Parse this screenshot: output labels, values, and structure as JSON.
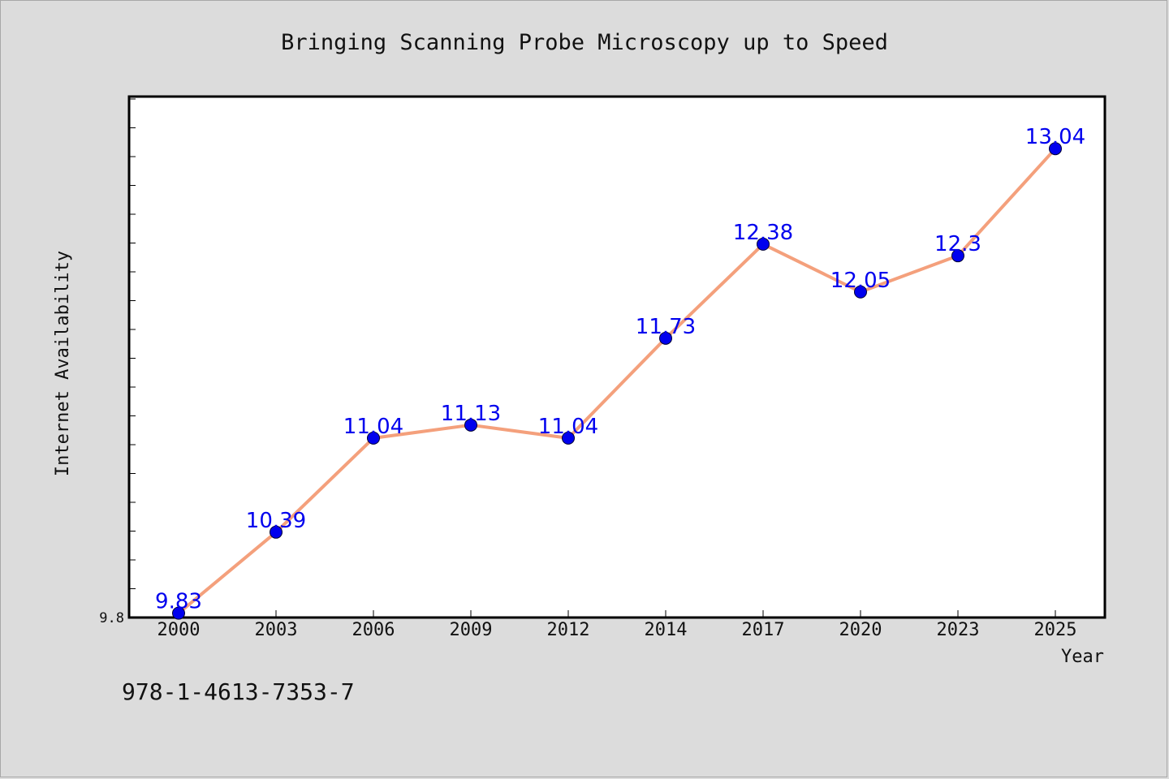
{
  "footnote": "978-1-4613-7353-7",
  "chart_data": {
    "type": "line",
    "title": "Bringing Scanning Probe Microscopy up to Speed",
    "xlabel": "Year",
    "ylabel": "Internet Availability",
    "categories": [
      "2000",
      "2003",
      "2006",
      "2009",
      "2012",
      "2014",
      "2017",
      "2020",
      "2023",
      "2025"
    ],
    "series": [
      {
        "values": [
          9.83,
          10.39,
          11.04,
          11.13,
          11.04,
          11.73,
          12.38,
          12.05,
          12.3,
          13.04
        ],
        "labels": [
          "9.83",
          "10.39",
          "11.04",
          "11.13",
          "11.04",
          "11.73",
          "12.38",
          "12.05",
          "12.3",
          "13.04"
        ],
        "line_color": "#f4a07c",
        "marker_color": "#0000ee"
      }
    ],
    "ylim": [
      9.8,
      13.4
    ],
    "yticks_labeled": [
      "9.8"
    ],
    "grid": false,
    "legend": "none",
    "plot_background": "#ffffff",
    "page_background": "#dcdcdc"
  }
}
